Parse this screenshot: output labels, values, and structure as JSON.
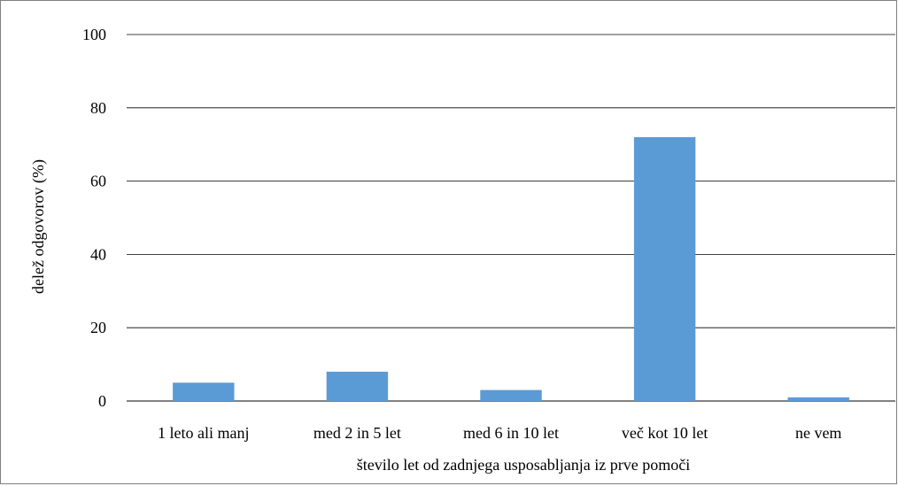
{
  "chart_data": {
    "type": "bar",
    "title": "",
    "xlabel": "število let od zadnjega usposabljanja iz prve pomoči",
    "ylabel": "delež odgovorov  (%)",
    "categories": [
      "1 leto ali manj",
      "med 2 in 5 let",
      "med 6 in 10 let",
      "več kot 10 let",
      "ne vem"
    ],
    "values": [
      5,
      8,
      3,
      72,
      1
    ],
    "ylim": [
      0,
      100
    ],
    "yticks": [
      0,
      20,
      40,
      60,
      80,
      100
    ],
    "grid": true,
    "legend": "none",
    "bar_color": "#5b9bd5",
    "grid_color": "#000000"
  }
}
